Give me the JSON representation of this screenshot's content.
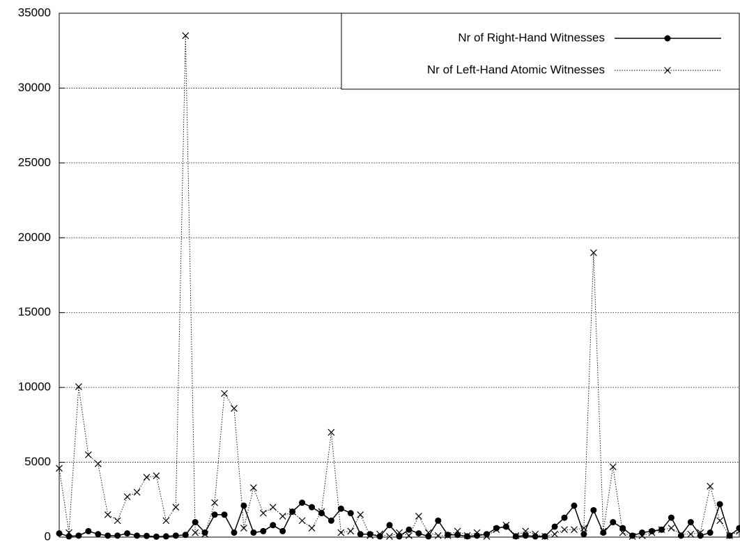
{
  "chart_data": {
    "type": "line",
    "x": [
      0,
      1,
      2,
      3,
      4,
      5,
      6,
      7,
      8,
      9,
      10,
      11,
      12,
      13,
      14,
      15,
      16,
      17,
      18,
      19,
      20,
      21,
      22,
      23,
      24,
      25,
      26,
      27,
      28,
      29,
      30,
      31,
      32,
      33,
      34,
      35,
      36,
      37,
      38,
      39,
      40,
      41,
      42,
      43,
      44,
      45,
      46,
      47,
      48,
      49,
      50,
      51,
      52,
      53,
      54,
      55,
      56,
      57,
      58,
      59,
      60,
      61,
      62,
      63,
      64,
      65,
      66,
      67,
      68,
      69,
      70
    ],
    "xlim": [
      0,
      70
    ],
    "ylim": [
      0,
      35000
    ],
    "yticks": [
      0,
      5000,
      10000,
      15000,
      20000,
      25000,
      30000,
      35000
    ],
    "grid": true,
    "legend": "top-right",
    "series": [
      {
        "name": "Nr of Right-Hand Witnesses",
        "color": "#000000",
        "marker": "circle",
        "line": "solid",
        "values": [
          250,
          50,
          100,
          400,
          200,
          100,
          100,
          250,
          100,
          80,
          30,
          50,
          100,
          150,
          1000,
          300,
          1500,
          1500,
          300,
          2100,
          300,
          400,
          800,
          400,
          1700,
          2300,
          2000,
          1600,
          1100,
          1900,
          1600,
          200,
          200,
          50,
          800,
          50,
          500,
          250,
          50,
          1100,
          150,
          150,
          50,
          100,
          200,
          600,
          700,
          50,
          100,
          50,
          50,
          700,
          1300,
          2100,
          200,
          1800,
          300,
          1000,
          600,
          100,
          300,
          400,
          500,
          1300,
          100,
          1000,
          100,
          300,
          2200,
          100,
          600
        ]
      },
      {
        "name": "Nr of Left-Hand Atomic Witnesses",
        "color": "#000000",
        "marker": "cross",
        "line": "dotted",
        "values": [
          4600,
          300,
          10050,
          5500,
          4900,
          1500,
          1100,
          2700,
          3000,
          4000,
          4100,
          1100,
          2000,
          33500,
          300,
          200,
          2300,
          9600,
          8600,
          600,
          3300,
          1600,
          2000,
          1400,
          1700,
          1100,
          600,
          1700,
          7000,
          300,
          400,
          1500,
          100,
          200,
          50,
          300,
          100,
          1400,
          300,
          100,
          100,
          400,
          100,
          300,
          50,
          500,
          800,
          100,
          400,
          200,
          50,
          200,
          500,
          500,
          600,
          19000,
          400,
          4700,
          300,
          50,
          100,
          300,
          500,
          600,
          200,
          200,
          300,
          3400,
          1100,
          100,
          400
        ]
      }
    ]
  }
}
